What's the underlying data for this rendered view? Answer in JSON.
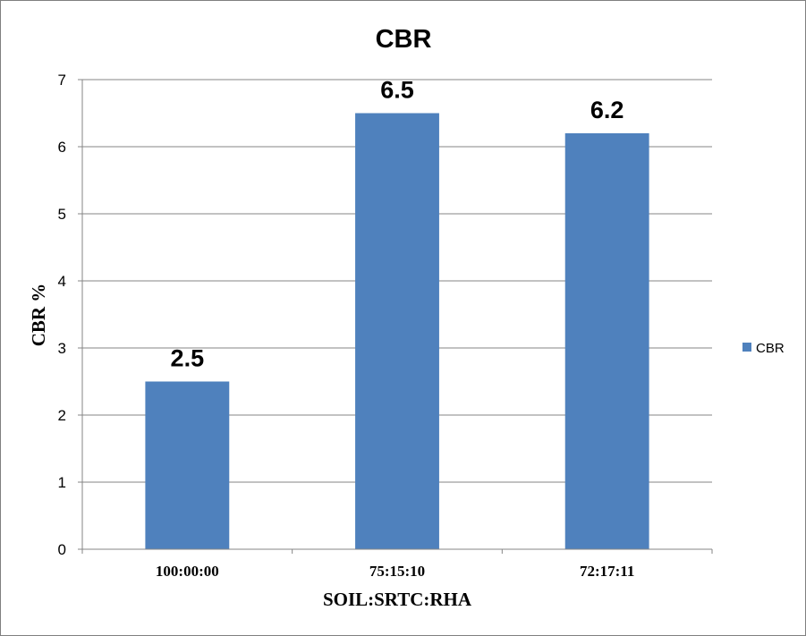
{
  "chart_data": {
    "type": "bar",
    "title": "CBR",
    "xlabel": "SOIL:SRTC:RHA",
    "ylabel": "CBR %",
    "categories": [
      "100:00:00",
      "75:15:10",
      "72:17:11"
    ],
    "series": [
      {
        "name": "CBR",
        "values": [
          2.5,
          6.5,
          6.2
        ],
        "color": "#4F81BD"
      }
    ],
    "data_labels": [
      "2.5",
      "6.5",
      "6.2"
    ],
    "ylim": [
      0,
      7
    ],
    "yticks": [
      0,
      1,
      2,
      3,
      4,
      5,
      6,
      7
    ],
    "grid": true,
    "legend_position": "right"
  }
}
